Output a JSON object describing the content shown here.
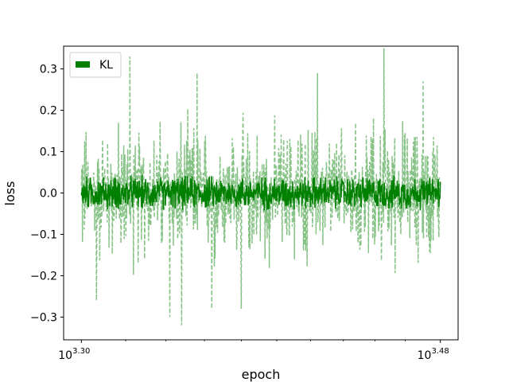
{
  "chart_data": {
    "type": "line",
    "title": "",
    "xlabel": "epoch",
    "ylabel": "loss",
    "x_scale": "log",
    "x_ticks": [
      {
        "value": 1995.26,
        "base": "10",
        "exponent": "3.30"
      },
      {
        "value": 3019.95,
        "base": "10",
        "exponent": "3.48"
      }
    ],
    "xlim": [
      1995.26,
      3019.95
    ],
    "ylim": [
      -0.355,
      0.355
    ],
    "y_ticks": [
      -0.3,
      -0.2,
      -0.1,
      0.0,
      0.1,
      0.2,
      0.3
    ],
    "y_tick_labels": [
      "−0.3",
      "−0.2",
      "−0.1",
      "0.0",
      "0.1",
      "0.2",
      "0.3"
    ],
    "grid": false,
    "legend": {
      "position": "top-left",
      "entries": [
        "KL"
      ]
    },
    "series": [
      {
        "name": "KL",
        "color": "#008000",
        "style": "solid",
        "x_range": [
          1995.26,
          3019.95
        ],
        "approx_envelope": [
          -0.05,
          0.05
        ],
        "values_sampled": [
          -0.01,
          0.03,
          -0.04,
          0.02,
          0.01,
          -0.03,
          0.04,
          -0.02,
          0.0,
          0.03,
          -0.01,
          -0.04,
          0.02,
          0.05,
          -0.03,
          0.01,
          -0.02,
          0.04,
          -0.05,
          0.02,
          0.0,
          -0.03,
          0.03,
          0.01,
          -0.04,
          0.02,
          -0.01,
          0.04,
          -0.02,
          0.03
        ]
      },
      {
        "color": "#7fbf7f",
        "style": "dashed",
        "x_range": [
          1995.26,
          3019.95
        ],
        "approx_envelope": [
          -0.32,
          0.35
        ],
        "spikes": [
          {
            "x": 2030,
            "y": -0.26
          },
          {
            "x": 2110,
            "y": 0.33
          },
          {
            "x": 2210,
            "y": -0.3
          },
          {
            "x": 2240,
            "y": -0.32
          },
          {
            "x": 2280,
            "y": 0.29
          },
          {
            "x": 2320,
            "y": -0.28
          },
          {
            "x": 2400,
            "y": -0.28
          },
          {
            "x": 2620,
            "y": 0.29
          },
          {
            "x": 2830,
            "y": 0.35
          },
          {
            "x": 2960,
            "y": 0.27
          }
        ]
      }
    ]
  }
}
